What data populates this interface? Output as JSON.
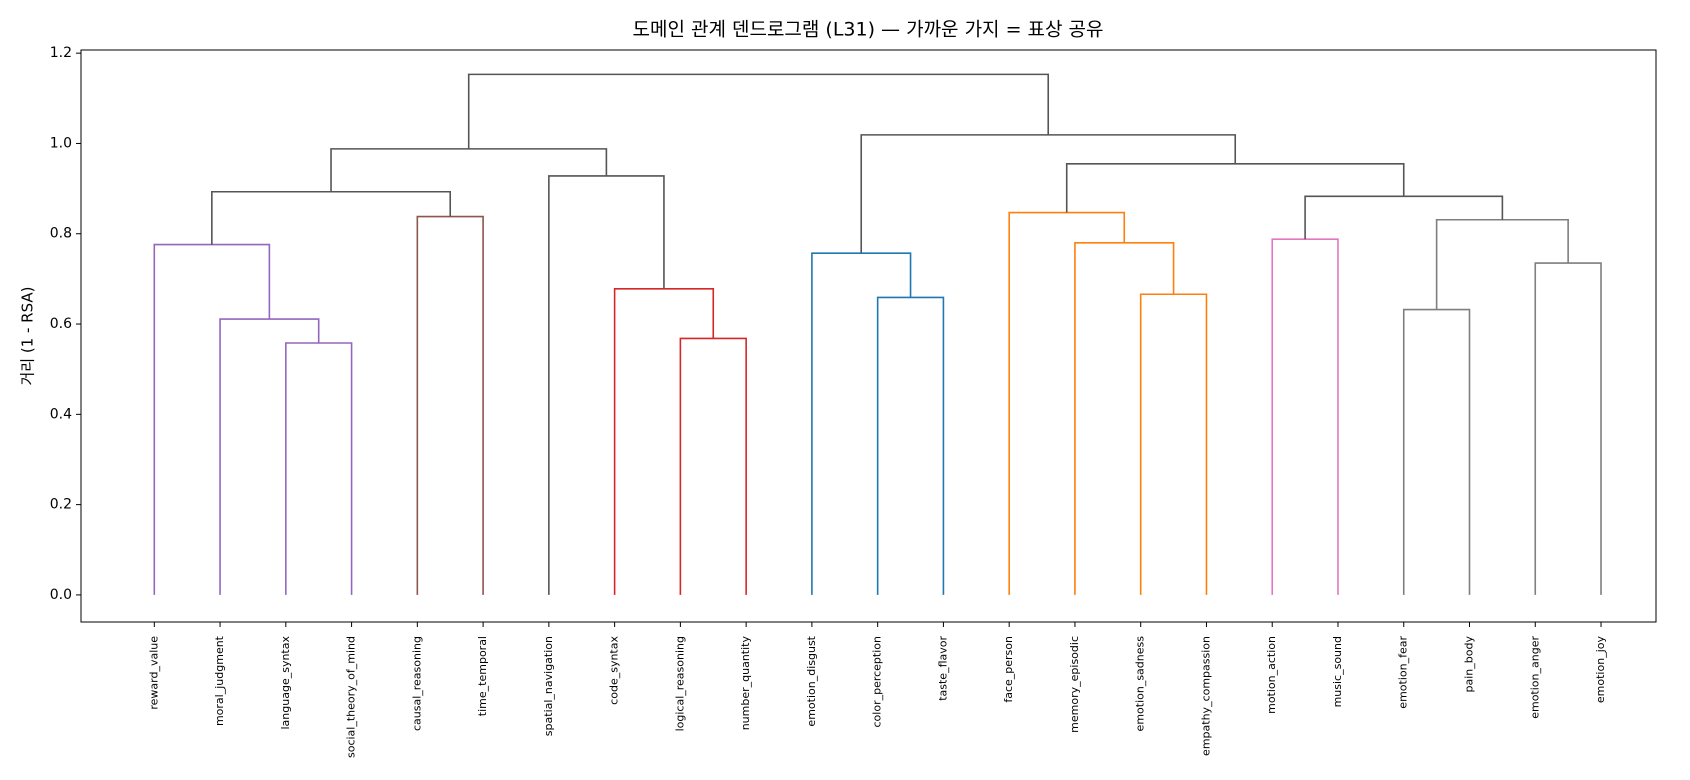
{
  "chart_data": {
    "type": "dendrogram",
    "title": "도메인 관계 덴드로그램 (L31) — 가까운 가지 = 표상 공유",
    "ylabel": "거리 (1 - RSA)",
    "categories": [
      "reward_value",
      "moral_judgment",
      "language_syntax",
      "social_theory_of_mind",
      "causal_reasoning",
      "time_temporal",
      "spatial_navigation",
      "code_syntax",
      "logical_reasoning",
      "number_quantity",
      "emotion_disgust",
      "color_perception",
      "taste_flavor",
      "face_person",
      "memory_episodic",
      "emotion_sadness",
      "empathy_compassion",
      "motion_action",
      "music_sound",
      "emotion_fear",
      "pain_body",
      "emotion_anger",
      "emotion_joy"
    ],
    "merges": [
      {
        "children": [
          2,
          3
        ],
        "height": 0.558,
        "color": "#9467bd"
      },
      {
        "children": [
          1,
          23
        ],
        "height": 0.611,
        "color": "#9467bd"
      },
      {
        "children": [
          0,
          24
        ],
        "height": 0.776,
        "color": "#9467bd"
      },
      {
        "children": [
          4,
          5
        ],
        "height": 0.838,
        "color": "#8c564b"
      },
      {
        "children": [
          8,
          9
        ],
        "height": 0.568,
        "color": "#d62728"
      },
      {
        "children": [
          7,
          27
        ],
        "height": 0.678,
        "color": "#d62728"
      },
      {
        "children": [
          6,
          28
        ],
        "height": 0.928,
        "color": "#555555"
      },
      {
        "children": [
          25,
          26
        ],
        "height": 0.893,
        "color": "#555555"
      },
      {
        "children": [
          30,
          29
        ],
        "height": 0.988,
        "color": "#555555"
      },
      {
        "children": [
          11,
          12
        ],
        "height": 0.659,
        "color": "#1f77b4"
      },
      {
        "children": [
          10,
          32
        ],
        "height": 0.757,
        "color": "#1f77b4"
      },
      {
        "children": [
          15,
          16
        ],
        "height": 0.666,
        "color": "#ff7f0e"
      },
      {
        "children": [
          14,
          34
        ],
        "height": 0.78,
        "color": "#ff7f0e"
      },
      {
        "children": [
          13,
          35
        ],
        "height": 0.847,
        "color": "#ff7f0e"
      },
      {
        "children": [
          17,
          18
        ],
        "height": 0.788,
        "color": "#e377c2"
      },
      {
        "children": [
          19,
          20
        ],
        "height": 0.632,
        "color": "#7f7f7f"
      },
      {
        "children": [
          21,
          22
        ],
        "height": 0.735,
        "color": "#7f7f7f"
      },
      {
        "children": [
          38,
          39
        ],
        "height": 0.831,
        "color": "#7f7f7f"
      },
      {
        "children": [
          37,
          40
        ],
        "height": 0.883,
        "color": "#555555"
      },
      {
        "children": [
          36,
          41
        ],
        "height": 0.955,
        "color": "#555555"
      },
      {
        "children": [
          33,
          42
        ],
        "height": 1.019,
        "color": "#555555"
      },
      {
        "children": [
          31,
          43
        ],
        "height": 1.153,
        "color": "#555555"
      }
    ],
    "ylim": [
      -0.06,
      1.207
    ],
    "yticks": [
      {
        "value": 0,
        "label": "0.0"
      },
      0.2,
      0.4,
      0.6,
      0.8,
      {
        "value": 1,
        "label": "1.0"
      },
      1.2
    ]
  }
}
